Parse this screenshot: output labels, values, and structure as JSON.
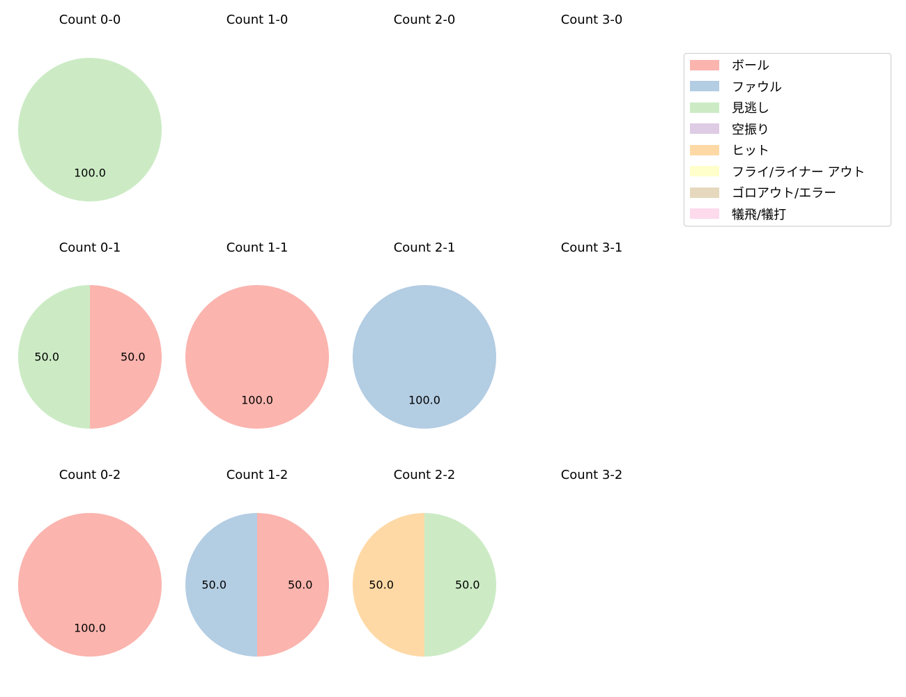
{
  "chart_data": {
    "type": "pie",
    "layout": {
      "rows": 3,
      "cols": 4,
      "legend_position": "upper right"
    },
    "legend": [
      {
        "label": "ボール",
        "color": "#fbb4ae"
      },
      {
        "label": "ファウル",
        "color": "#b3cde3"
      },
      {
        "label": "見逃し",
        "color": "#ccebc5"
      },
      {
        "label": "空振り",
        "color": "#decbe4"
      },
      {
        "label": "ヒット",
        "color": "#fed9a6"
      },
      {
        "label": "フライ/ライナー アウト",
        "color": "#ffffcc"
      },
      {
        "label": "ゴロアウト/エラー",
        "color": "#e5d8bd"
      },
      {
        "label": "犠飛/犠打",
        "color": "#fddaec"
      }
    ],
    "panels": [
      {
        "title": "Count 0-0",
        "row": 0,
        "col": 0,
        "slices": [
          {
            "category": "見逃し",
            "value": 100.0
          }
        ]
      },
      {
        "title": "Count 1-0",
        "row": 0,
        "col": 1,
        "slices": []
      },
      {
        "title": "Count 2-0",
        "row": 0,
        "col": 2,
        "slices": []
      },
      {
        "title": "Count 3-0",
        "row": 0,
        "col": 3,
        "slices": []
      },
      {
        "title": "Count 0-1",
        "row": 1,
        "col": 0,
        "slices": [
          {
            "category": "ボール",
            "value": 50.0
          },
          {
            "category": "見逃し",
            "value": 50.0
          }
        ]
      },
      {
        "title": "Count 1-1",
        "row": 1,
        "col": 1,
        "slices": [
          {
            "category": "ボール",
            "value": 100.0
          }
        ]
      },
      {
        "title": "Count 2-1",
        "row": 1,
        "col": 2,
        "slices": [
          {
            "category": "ファウル",
            "value": 100.0
          }
        ]
      },
      {
        "title": "Count 3-1",
        "row": 1,
        "col": 3,
        "slices": []
      },
      {
        "title": "Count 0-2",
        "row": 2,
        "col": 0,
        "slices": [
          {
            "category": "ボール",
            "value": 100.0
          }
        ]
      },
      {
        "title": "Count 1-2",
        "row": 2,
        "col": 1,
        "slices": [
          {
            "category": "ボール",
            "value": 50.0
          },
          {
            "category": "ファウル",
            "value": 50.0
          }
        ]
      },
      {
        "title": "Count 2-2",
        "row": 2,
        "col": 2,
        "slices": [
          {
            "category": "見逃し",
            "value": 50.0
          },
          {
            "category": "ヒット",
            "value": 50.0
          }
        ]
      },
      {
        "title": "Count 3-2",
        "row": 2,
        "col": 3,
        "slices": []
      }
    ]
  }
}
